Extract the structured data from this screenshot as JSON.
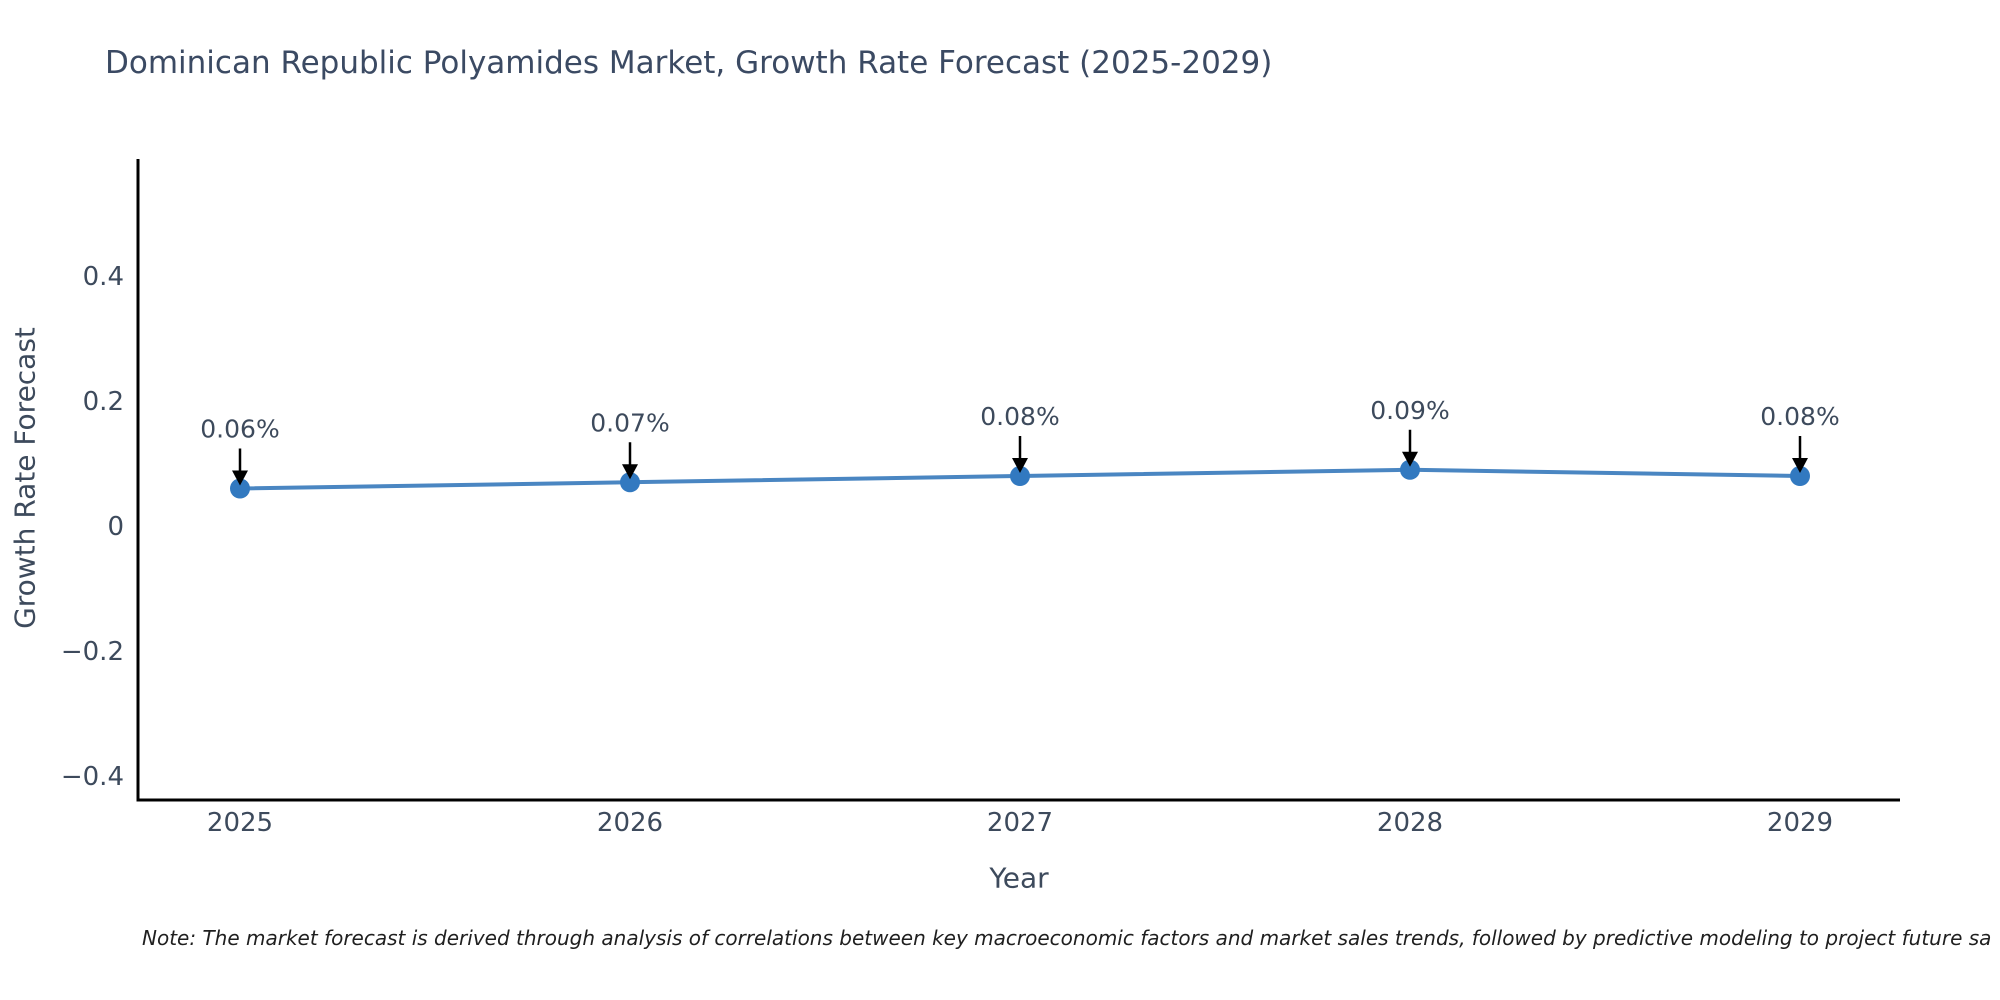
{
  "title": "Dominican Republic Polyamides Market, Growth Rate Forecast (2025-2029)",
  "note": "Note: The market forecast is derived through analysis of correlations between key macroeconomic factors and market sales trends, followed by predictive modeling to project future sa",
  "chart_data": {
    "type": "line",
    "title": "Dominican Republic Polyamides Market, Growth Rate Forecast (2025-2029)",
    "xlabel": "Year",
    "ylabel": "Growth Rate Forecast",
    "x": [
      2025,
      2026,
      2027,
      2028,
      2029
    ],
    "series": [
      {
        "name": "Growth Rate Forecast",
        "values": [
          0.06,
          0.07,
          0.08,
          0.09,
          0.08
        ]
      }
    ],
    "point_labels": [
      "0.06%",
      "0.07%",
      "0.08%",
      "0.09%",
      "0.08%"
    ],
    "yticks": [
      0.4,
      0.2,
      0,
      -0.2,
      -0.4
    ],
    "ytick_labels": [
      "0.4",
      "0.2",
      "0",
      "−0.2",
      "−0.4"
    ],
    "ylim": [
      -0.44,
      0.59
    ],
    "grid": false,
    "legend": "none",
    "colors": {
      "line": "#4a86c2",
      "marker": "#3279c0",
      "axis": "#000000",
      "tick_text": "#3d4a5c",
      "annotation_text": "#3d4a5c",
      "arrow": "#000000"
    }
  }
}
